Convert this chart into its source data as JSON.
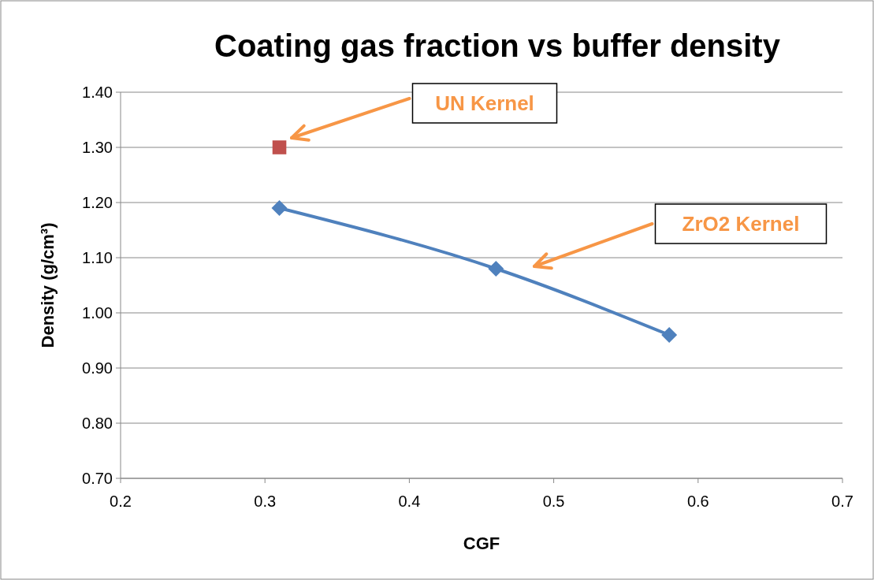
{
  "chart_data": {
    "type": "line",
    "title": "Coating gas fraction vs buffer density",
    "xlabel": "CGF",
    "ylabel": "Density (g/cm³)",
    "xlim": [
      0.2,
      0.7
    ],
    "xticks": [
      0.2,
      0.3,
      0.4,
      0.5,
      0.6,
      0.7
    ],
    "ylim": [
      0.7,
      1.4
    ],
    "yticks": [
      {
        "value": 0.7,
        "label": "0.70"
      },
      {
        "value": 0.8,
        "label": "0.80"
      },
      {
        "value": 0.9,
        "label": "0.90"
      },
      {
        "value": 1.0,
        "label": "1.00"
      },
      {
        "value": 1.1,
        "label": "1.10"
      },
      {
        "value": 1.2,
        "label": "1.20"
      },
      {
        "value": 1.3,
        "label": "1.30"
      },
      {
        "value": 1.4,
        "label": "1.40"
      }
    ],
    "grid": "y",
    "line_style": "solid",
    "series": [
      {
        "color": "#4f81bd",
        "marker": "diamond",
        "x": [
          0.31,
          0.46,
          0.58
        ],
        "values": [
          1.19,
          1.08,
          0.96
        ]
      },
      {
        "type": "scatter",
        "color": "#c0504d",
        "marker": "square",
        "x": [
          0.31
        ],
        "values": [
          1.3
        ]
      }
    ],
    "annotations": [
      "UN Kernel",
      "ZrO2 Kernel"
    ]
  }
}
